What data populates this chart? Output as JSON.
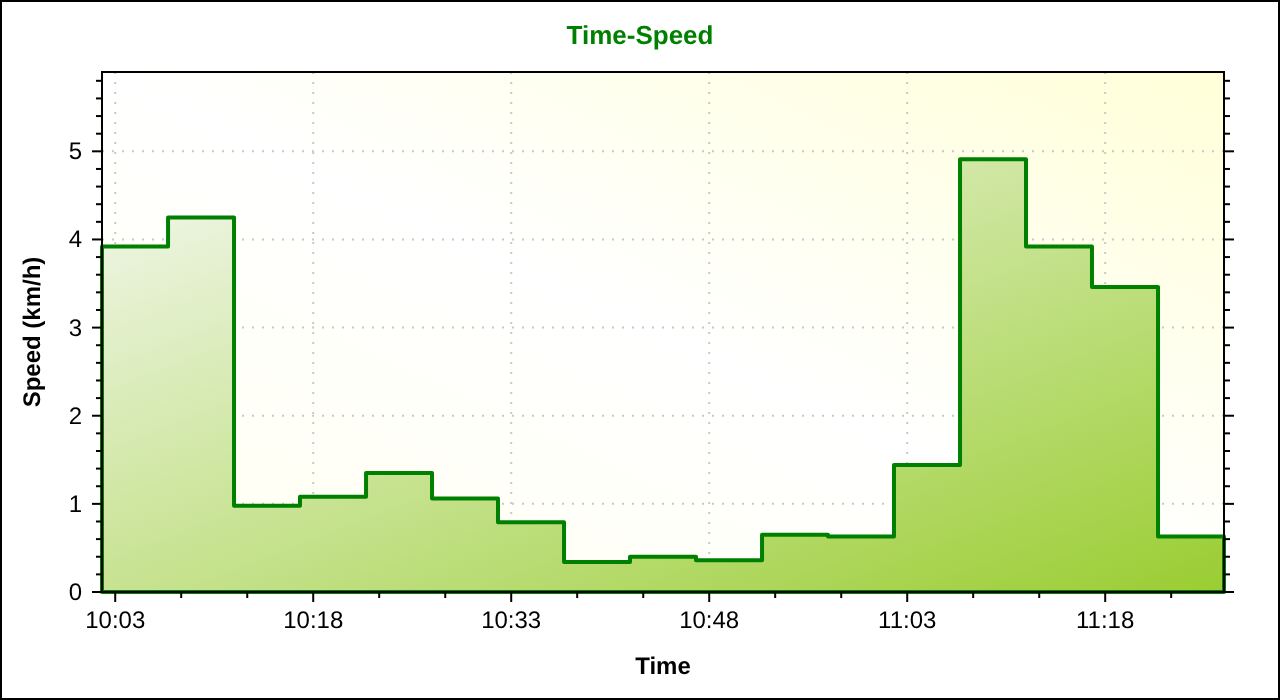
{
  "chart_data": {
    "type": "step",
    "title": "Time-Speed",
    "xlabel": "Time",
    "ylabel": "Speed (km/h)",
    "x": [
      10.0333,
      10.1167,
      10.2,
      10.2833,
      10.3667,
      10.45,
      10.5333,
      10.6167,
      10.7,
      10.7833,
      10.8667,
      10.95,
      11.0333,
      11.1167,
      11.2,
      11.2833,
      11.3667,
      11.45
    ],
    "series": [
      {
        "type": "area",
        "color": "#008000",
        "values": [
          3.92,
          4.25,
          0.98,
          1.08,
          1.35,
          1.06,
          0.79,
          0.34,
          0.4,
          0.36,
          0.65,
          0.63,
          1.44,
          4.91,
          3.92,
          3.46,
          0.63,
          0.63
        ]
      }
    ],
    "xlim": [
      10.0333,
      11.45
    ],
    "xticks": [
      {
        "value": 10.05,
        "label": "10:03"
      },
      {
        "value": 10.1333,
        "label": null
      },
      {
        "value": 10.2167,
        "label": null
      },
      {
        "value": 10.3,
        "label": "10:18"
      },
      {
        "value": 10.3833,
        "label": null
      },
      {
        "value": 10.4667,
        "label": null
      },
      {
        "value": 10.55,
        "label": "10:33"
      },
      {
        "value": 10.6333,
        "label": null
      },
      {
        "value": 10.7167,
        "label": null
      },
      {
        "value": 10.8,
        "label": "10:48"
      },
      {
        "value": 10.8833,
        "label": null
      },
      {
        "value": 10.9667,
        "label": null
      },
      {
        "value": 11.05,
        "label": "11:03"
      },
      {
        "value": 11.1333,
        "label": null
      },
      {
        "value": 11.2167,
        "label": null
      },
      {
        "value": 11.3,
        "label": "11:18"
      },
      {
        "value": 11.3833,
        "label": null
      }
    ],
    "ylim": [
      0,
      5.9
    ],
    "yticks": [
      0,
      {
        "value": 0.2,
        "label": null
      },
      {
        "value": 0.4,
        "label": null
      },
      {
        "value": 0.6,
        "label": null
      },
      {
        "value": 0.8,
        "label": null
      },
      1,
      {
        "value": 1.2,
        "label": null
      },
      {
        "value": 1.4,
        "label": null
      },
      {
        "value": 1.6,
        "label": null
      },
      {
        "value": 1.8,
        "label": null
      },
      2,
      {
        "value": 2.2,
        "label": null
      },
      {
        "value": 2.4,
        "label": null
      },
      {
        "value": 2.6,
        "label": null
      },
      {
        "value": 2.8,
        "label": null
      },
      3,
      {
        "value": 3.2,
        "label": null
      },
      {
        "value": 3.4,
        "label": null
      },
      {
        "value": 3.6,
        "label": null
      },
      {
        "value": 3.8,
        "label": null
      },
      4,
      {
        "value": 4.2,
        "label": null
      },
      {
        "value": 4.4,
        "label": null
      },
      {
        "value": 4.6,
        "label": null
      },
      {
        "value": 4.8,
        "label": null
      },
      5,
      {
        "value": 5.2,
        "label": null
      },
      {
        "value": 5.4,
        "label": null
      },
      {
        "value": 5.6,
        "label": null
      },
      {
        "value": 5.8,
        "label": null
      }
    ],
    "grid": true,
    "line_style": "solid"
  }
}
